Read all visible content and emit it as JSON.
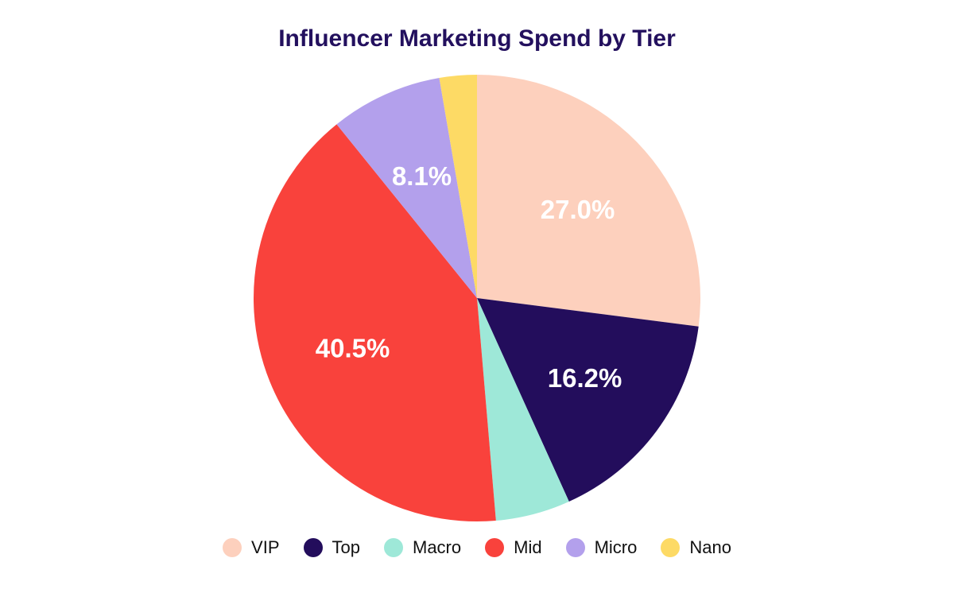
{
  "chart_data": {
    "type": "pie",
    "title": "Influencer Marketing Spend by Tier",
    "slices": [
      {
        "name": "VIP",
        "value": 27.0,
        "label": "27.0%",
        "color": "#fdd0bd"
      },
      {
        "name": "Top",
        "value": 16.2,
        "label": "16.2%",
        "color": "#230d5c"
      },
      {
        "name": "Macro",
        "value": 5.4,
        "label": "",
        "color": "#9ee8d8"
      },
      {
        "name": "Mid",
        "value": 40.5,
        "label": "40.5%",
        "color": "#f9423c"
      },
      {
        "name": "Micro",
        "value": 8.1,
        "label": "8.1%",
        "color": "#b3a0ec"
      },
      {
        "name": "Nano",
        "value": 2.7,
        "label": "",
        "color": "#fdda65"
      }
    ],
    "legend_position": "bottom"
  }
}
